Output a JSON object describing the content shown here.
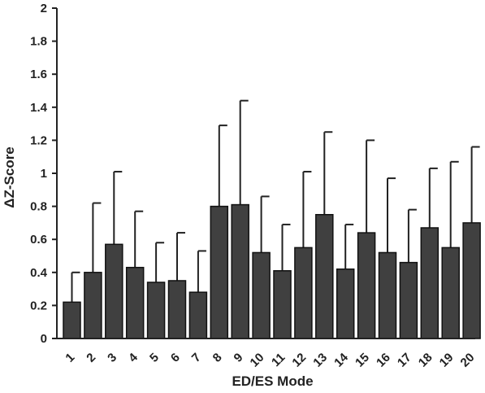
{
  "chart_data": {
    "type": "bar",
    "title": "",
    "xlabel": "ED/ES Mode",
    "ylabel": "ΔZ-Score",
    "ylim": [
      0,
      2
    ],
    "yticks": [
      "0",
      "0.2",
      "0.4",
      "0.6",
      "0.8",
      "1",
      "1.2",
      "1.4",
      "1.6",
      "1.8",
      "2"
    ],
    "categories": [
      "1",
      "2",
      "3",
      "4",
      "5",
      "6",
      "7",
      "8",
      "9",
      "10",
      "11",
      "12",
      "13",
      "14",
      "15",
      "16",
      "17",
      "18",
      "19",
      "20"
    ],
    "values": [
      0.22,
      0.4,
      0.57,
      0.43,
      0.34,
      0.35,
      0.28,
      0.8,
      0.81,
      0.52,
      0.41,
      0.55,
      0.75,
      0.42,
      0.64,
      0.52,
      0.46,
      0.67,
      0.55,
      0.7
    ],
    "error_upper": [
      0.4,
      0.82,
      1.01,
      0.77,
      0.58,
      0.64,
      0.53,
      1.29,
      1.44,
      0.86,
      0.69,
      1.01,
      1.25,
      0.69,
      1.2,
      0.97,
      0.78,
      1.03,
      1.07,
      1.16
    ],
    "grid": false,
    "bar_color": "#404040",
    "axis_color": "#222222"
  }
}
